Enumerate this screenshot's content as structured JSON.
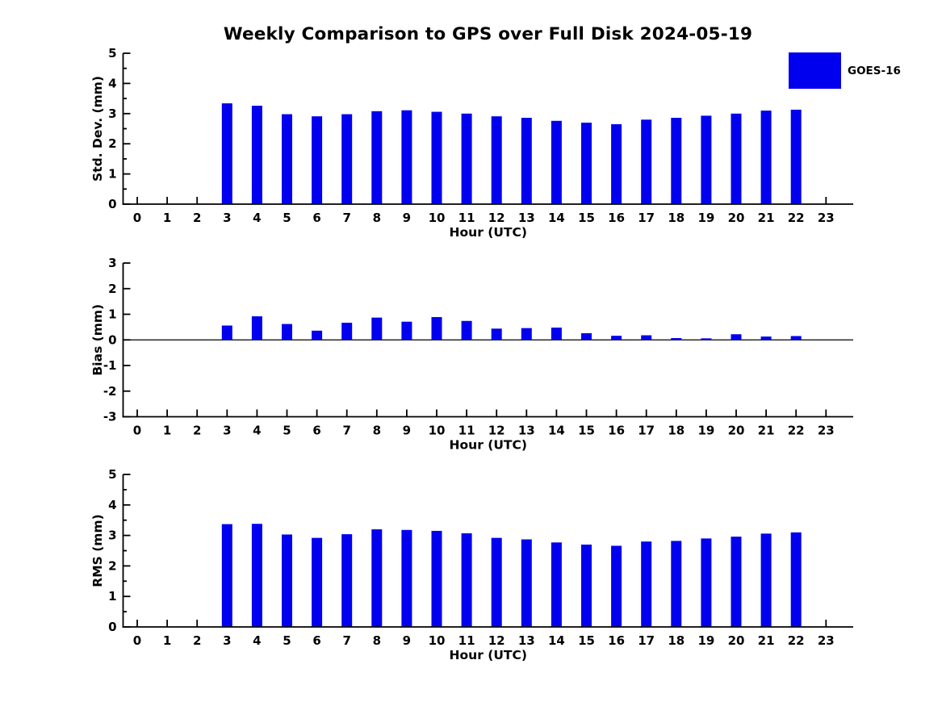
{
  "title": "Weekly Comparison to GPS over Full Disk 2024-05-19",
  "legend": {
    "label": "GOES-16",
    "color": "#0000ee"
  },
  "colors": {
    "bar": "#0000ee",
    "axis": "#000000",
    "text": "#000000",
    "background": "#ffffff"
  },
  "chart_data": [
    {
      "id": "std-dev",
      "type": "bar",
      "ylabel": "Std. Dev. (mm)",
      "xlabel": "Hour (UTC)",
      "ylim": [
        0,
        5
      ],
      "yticks": [
        0,
        1,
        2,
        3,
        4,
        5
      ],
      "minor_y_step": 0.5,
      "zero_line": false,
      "x": [
        0,
        1,
        2,
        3,
        4,
        5,
        6,
        7,
        8,
        9,
        10,
        11,
        12,
        13,
        14,
        15,
        16,
        17,
        18,
        19,
        20,
        21,
        22,
        23
      ],
      "series": [
        {
          "name": "GOES-16",
          "values": [
            null,
            null,
            null,
            3.34,
            3.26,
            2.98,
            2.91,
            2.98,
            3.08,
            3.11,
            3.06,
            3.0,
            2.91,
            2.86,
            2.76,
            2.7,
            2.65,
            2.8,
            2.86,
            2.93,
            3.0,
            3.1,
            3.13,
            null
          ]
        }
      ]
    },
    {
      "id": "bias",
      "type": "bar",
      "ylabel": "Bias (mm)",
      "xlabel": "Hour (UTC)",
      "ylim": [
        -3,
        3
      ],
      "yticks": [
        -3,
        -2,
        -1,
        0,
        1,
        2,
        3
      ],
      "minor_y_step": null,
      "zero_line": true,
      "x": [
        0,
        1,
        2,
        3,
        4,
        5,
        6,
        7,
        8,
        9,
        10,
        11,
        12,
        13,
        14,
        15,
        16,
        17,
        18,
        19,
        20,
        21,
        22,
        23
      ],
      "series": [
        {
          "name": "GOES-16",
          "values": [
            null,
            null,
            null,
            0.56,
            0.92,
            0.62,
            0.36,
            0.67,
            0.87,
            0.71,
            0.89,
            0.74,
            0.44,
            0.46,
            0.48,
            0.26,
            0.16,
            0.18,
            0.07,
            0.06,
            0.22,
            0.13,
            0.15,
            null
          ]
        }
      ]
    },
    {
      "id": "rms",
      "type": "bar",
      "ylabel": "RMS (mm)",
      "xlabel": "Hour (UTC)",
      "ylim": [
        0,
        5
      ],
      "yticks": [
        0,
        1,
        2,
        3,
        4,
        5
      ],
      "minor_y_step": 0.5,
      "zero_line": false,
      "x": [
        0,
        1,
        2,
        3,
        4,
        5,
        6,
        7,
        8,
        9,
        10,
        11,
        12,
        13,
        14,
        15,
        16,
        17,
        18,
        19,
        20,
        21,
        22,
        23
      ],
      "series": [
        {
          "name": "GOES-16",
          "values": [
            null,
            null,
            null,
            3.37,
            3.38,
            3.03,
            2.92,
            3.04,
            3.2,
            3.18,
            3.15,
            3.07,
            2.92,
            2.87,
            2.77,
            2.7,
            2.66,
            2.8,
            2.82,
            2.9,
            2.96,
            3.06,
            3.1,
            null
          ]
        }
      ]
    }
  ]
}
